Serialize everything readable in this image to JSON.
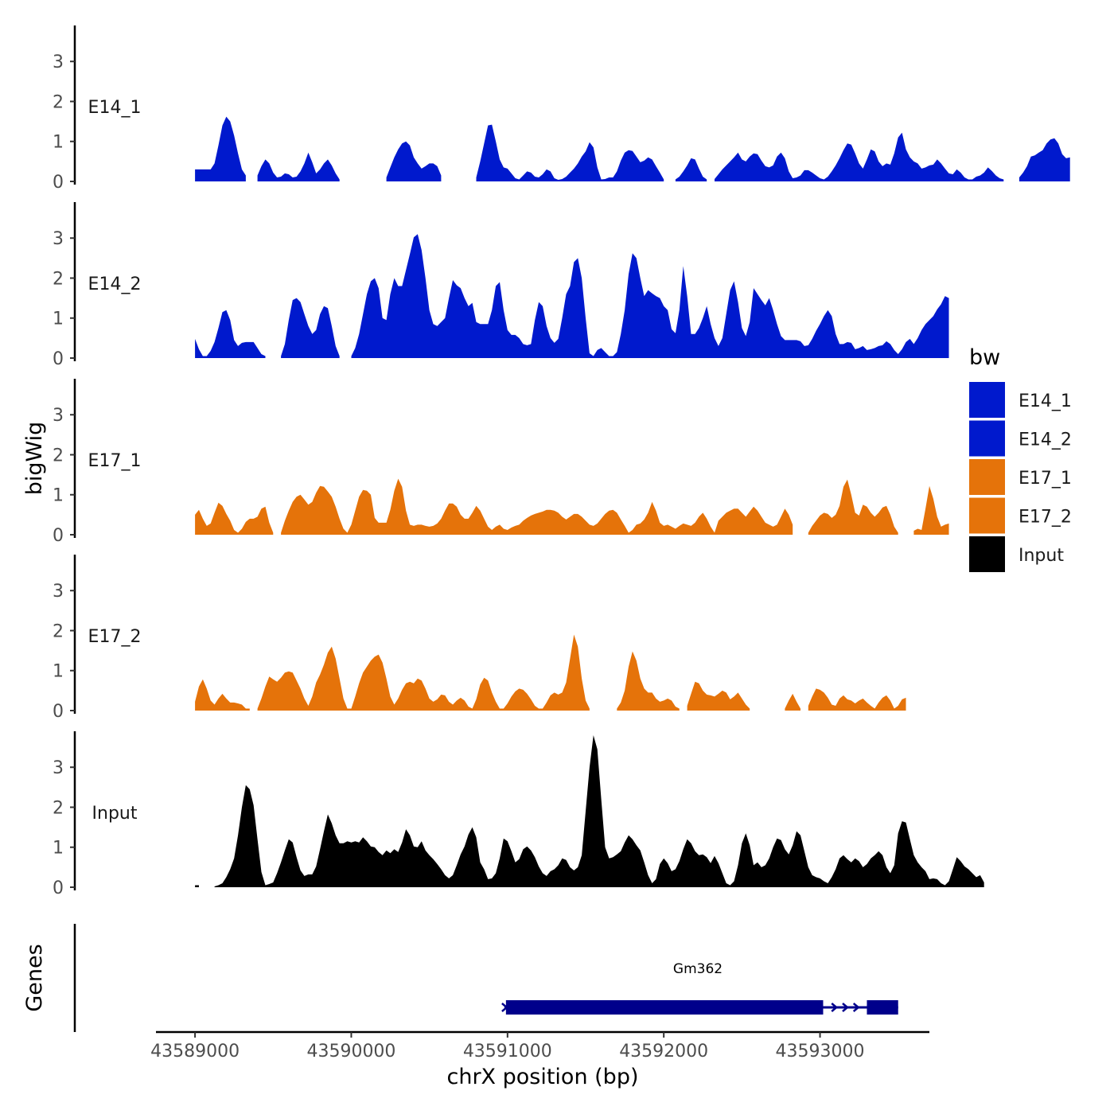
{
  "chart_data": {
    "type": "area",
    "y_title": "bigWig",
    "x_title": "chrX position (bp)",
    "genes_title": "Genes",
    "xlim": [
      43588750,
      43593700
    ],
    "data_range": [
      43589000,
      43593500
    ],
    "ylim": [
      0,
      3.9
    ],
    "y_ticks": [
      "0",
      "1",
      "2",
      "3"
    ],
    "x_ticks": [
      {
        "value": 43589000,
        "label": "43589000"
      },
      {
        "value": 43590000,
        "label": "43590000"
      },
      {
        "value": 43591000,
        "label": "43591000"
      },
      {
        "value": 43592000,
        "label": "43592000"
      },
      {
        "value": 43593000,
        "label": "43593000"
      }
    ],
    "tracks": [
      {
        "name": "E14_1",
        "color": "#0019CD",
        "step": 25,
        "values": [
          0.3,
          0.3,
          0.3,
          0.3,
          0.3,
          0.45,
          0.9,
          1.4,
          1.62,
          1.5,
          1.15,
          0.7,
          0.3,
          0.15,
          null,
          null,
          0.15,
          0.38,
          0.55,
          0.45,
          0.22,
          0.1,
          0.12,
          0.2,
          0.18,
          0.1,
          0.12,
          0.25,
          0.45,
          0.72,
          0.48,
          0.2,
          0.3,
          0.45,
          0.55,
          0.4,
          0.2,
          0.05,
          null,
          null,
          null,
          null,
          null,
          null,
          null,
          null,
          null,
          null,
          null,
          0.1,
          0.35,
          0.6,
          0.8,
          0.95,
          1.0,
          0.9,
          0.6,
          0.45,
          0.32,
          0.38,
          0.45,
          0.45,
          0.38,
          0.15,
          null,
          null,
          null,
          null,
          null,
          null,
          null,
          null,
          0.1,
          0.5,
          0.95,
          1.4,
          1.42,
          1.0,
          0.55,
          0.35,
          0.32,
          0.2,
          0.08,
          0.05,
          0.15,
          0.25,
          0.22,
          0.12,
          0.1,
          0.18,
          0.3,
          0.25,
          0.08,
          0.04,
          0.06,
          0.12,
          0.22,
          0.32,
          0.45,
          0.62,
          0.75,
          0.98,
          0.85,
          0.35,
          0.05,
          0.06,
          0.1,
          0.1,
          0.25,
          0.52,
          0.72,
          0.78,
          0.76,
          0.62,
          0.48,
          0.52,
          0.6,
          0.55,
          0.38,
          0.22,
          0.05,
          null,
          null,
          0.05,
          0.12,
          0.25,
          0.4,
          0.58,
          0.55,
          0.32,
          0.12,
          0.05,
          null,
          0.06,
          0.18,
          0.3,
          0.4,
          0.5,
          0.6,
          0.72,
          0.55,
          0.5,
          0.62,
          0.7,
          0.68,
          0.52,
          0.38,
          0.35,
          0.4,
          0.62,
          0.72,
          0.58,
          0.25,
          0.08,
          0.1,
          0.15,
          0.28,
          0.28,
          0.22,
          0.15,
          0.08,
          0.05,
          0.12,
          0.25,
          0.4,
          0.58,
          0.78,
          0.95,
          0.92,
          0.7,
          0.45,
          0.32,
          0.55,
          0.8,
          0.75,
          0.5,
          0.38,
          0.45,
          0.42,
          0.7,
          1.1,
          1.22,
          0.8,
          0.6,
          0.5,
          0.45,
          0.32,
          0.35,
          0.4,
          0.42,
          0.55,
          0.45,
          0.32,
          0.2,
          0.18,
          0.3,
          0.22,
          0.1,
          0.05,
          0.05,
          0.12,
          0.15,
          0.22,
          0.35,
          0.26,
          0.15,
          0.08,
          0.05,
          null,
          null,
          null,
          0.1,
          0.22,
          0.38,
          0.62,
          0.65,
          0.72,
          0.78,
          0.95,
          1.05,
          1.08,
          0.95,
          0.68,
          0.58,
          0.6
        ]
      },
      {
        "name": "E14_2",
        "color": "#0019CD",
        "step": 25,
        "values": [
          0.48,
          0.22,
          0.05,
          0.05,
          0.18,
          0.4,
          0.75,
          1.15,
          1.2,
          0.95,
          0.45,
          0.3,
          0.38,
          0.4,
          0.4,
          0.4,
          0.25,
          0.1,
          0.05,
          null,
          null,
          null,
          0.05,
          0.35,
          0.95,
          1.45,
          1.5,
          1.4,
          1.1,
          0.8,
          0.6,
          0.7,
          1.1,
          1.3,
          1.25,
          0.8,
          0.3,
          0.05,
          null,
          null,
          0.05,
          0.25,
          0.6,
          1.1,
          1.6,
          1.92,
          2.0,
          1.75,
          1.0,
          0.95,
          1.6,
          2.0,
          1.8,
          1.8,
          2.2,
          2.6,
          3.02,
          3.1,
          2.7,
          2.0,
          1.2,
          0.85,
          0.8,
          0.9,
          1.0,
          1.5,
          1.95,
          1.82,
          1.75,
          1.5,
          1.3,
          1.38,
          0.9,
          0.85,
          0.85,
          0.85,
          1.2,
          1.8,
          1.9,
          1.2,
          0.7,
          0.58,
          0.58,
          0.5,
          0.35,
          0.32,
          0.35,
          0.95,
          1.4,
          1.3,
          0.8,
          0.5,
          0.38,
          0.48,
          1.0,
          1.6,
          1.8,
          2.4,
          2.5,
          2.0,
          1.0,
          0.12,
          0.05,
          0.2,
          0.25,
          0.15,
          0.05,
          0.05,
          0.15,
          0.6,
          1.2,
          2.1,
          2.62,
          2.5,
          2.0,
          1.55,
          1.7,
          1.62,
          1.55,
          1.5,
          1.3,
          1.2,
          0.72,
          0.62,
          1.2,
          2.3,
          1.55,
          0.6,
          0.6,
          0.75,
          1.0,
          1.3,
          0.85,
          0.5,
          0.3,
          0.5,
          1.1,
          1.7,
          1.92,
          1.4,
          0.75,
          0.55,
          0.9,
          1.75,
          1.6,
          1.45,
          1.32,
          1.5,
          1.2,
          0.85,
          0.55,
          0.45,
          0.45,
          0.45,
          0.45,
          0.42,
          0.3,
          0.32,
          0.48,
          0.68,
          0.85,
          1.05,
          1.2,
          1.05,
          0.6,
          0.35,
          0.35,
          0.4,
          0.38,
          0.22,
          0.25,
          0.3,
          0.2,
          0.22,
          0.25,
          0.3,
          0.32,
          0.42,
          0.35,
          0.2,
          0.1,
          0.22,
          0.4,
          0.48,
          0.35,
          0.5,
          0.7,
          0.85,
          0.95,
          1.05,
          1.22,
          1.35,
          1.55,
          1.5
        ]
      },
      {
        "name": "E17_1",
        "color": "#E5730A",
        "step": 25,
        "values": [
          0.5,
          0.62,
          0.4,
          0.22,
          0.28,
          0.55,
          0.8,
          0.72,
          0.52,
          0.35,
          0.12,
          0.05,
          0.15,
          0.32,
          0.4,
          0.4,
          0.45,
          0.65,
          0.7,
          0.3,
          0.05,
          null,
          0.05,
          0.35,
          0.6,
          0.82,
          0.95,
          1.0,
          0.88,
          0.75,
          0.82,
          1.05,
          1.22,
          1.2,
          1.08,
          0.95,
          0.7,
          0.4,
          0.15,
          0.05,
          0.25,
          0.6,
          0.95,
          1.12,
          1.1,
          1.0,
          0.42,
          0.3,
          0.3,
          0.3,
          0.62,
          1.1,
          1.4,
          1.2,
          0.6,
          0.25,
          0.22,
          0.25,
          0.25,
          0.22,
          0.2,
          0.22,
          0.28,
          0.4,
          0.6,
          0.78,
          0.78,
          0.7,
          0.5,
          0.4,
          0.4,
          0.55,
          0.72,
          0.6,
          0.4,
          0.2,
          0.12,
          0.2,
          0.25,
          0.15,
          0.12,
          0.18,
          0.22,
          0.25,
          0.35,
          0.42,
          0.48,
          0.52,
          0.55,
          0.58,
          0.62,
          0.62,
          0.6,
          0.55,
          0.45,
          0.38,
          0.45,
          0.52,
          0.52,
          0.45,
          0.35,
          0.25,
          0.22,
          0.28,
          0.4,
          0.52,
          0.6,
          0.62,
          0.55,
          0.38,
          0.22,
          0.05,
          0.12,
          0.25,
          0.28,
          0.38,
          0.55,
          0.82,
          0.6,
          0.3,
          0.22,
          0.25,
          0.2,
          0.15,
          0.22,
          0.28,
          0.25,
          0.22,
          0.3,
          0.45,
          0.55,
          0.4,
          0.2,
          0.05,
          0.35,
          0.45,
          0.55,
          0.6,
          0.65,
          0.65,
          0.55,
          0.45,
          0.58,
          0.7,
          0.6,
          0.45,
          0.3,
          0.25,
          0.2,
          0.25,
          0.45,
          0.65,
          0.5,
          0.25,
          null,
          null,
          null,
          0.05,
          0.22,
          0.35,
          0.48,
          0.55,
          0.52,
          0.42,
          0.5,
          0.72,
          1.2,
          1.38,
          1.0,
          0.55,
          0.48,
          0.75,
          0.7,
          0.55,
          0.45,
          0.55,
          0.68,
          0.72,
          0.5,
          0.2,
          0.05,
          null,
          null,
          null,
          0.1,
          0.15,
          0.12,
          0.65,
          1.22,
          0.9,
          0.45,
          0.2,
          0.25,
          0.28
        ]
      },
      {
        "name": "E17_2",
        "color": "#E5730A",
        "step": 25,
        "values": [
          0.22,
          0.6,
          0.78,
          0.55,
          0.25,
          0.15,
          0.3,
          0.42,
          0.3,
          0.2,
          0.2,
          0.18,
          0.15,
          0.05,
          0.05,
          null,
          0.05,
          0.3,
          0.6,
          0.85,
          0.78,
          0.72,
          0.82,
          0.95,
          0.98,
          0.95,
          0.75,
          0.55,
          0.3,
          0.12,
          0.35,
          0.7,
          0.9,
          1.15,
          1.45,
          1.6,
          1.3,
          0.8,
          0.3,
          0.05,
          0.05,
          0.35,
          0.68,
          0.95,
          1.1,
          1.25,
          1.35,
          1.4,
          1.2,
          0.8,
          0.35,
          0.15,
          0.3,
          0.52,
          0.68,
          0.72,
          0.68,
          0.8,
          0.75,
          0.55,
          0.3,
          0.22,
          0.28,
          0.4,
          0.38,
          0.22,
          0.15,
          0.25,
          0.32,
          0.25,
          0.1,
          0.05,
          0.28,
          0.65,
          0.82,
          0.75,
          0.45,
          0.22,
          0.05,
          0.05,
          0.18,
          0.35,
          0.48,
          0.55,
          0.52,
          0.42,
          0.28,
          0.12,
          0.05,
          0.05,
          0.2,
          0.38,
          0.45,
          0.4,
          0.45,
          0.7,
          1.3,
          1.9,
          1.6,
          0.8,
          0.25,
          0.05,
          null,
          null,
          null,
          null,
          null,
          null,
          0.05,
          0.2,
          0.5,
          1.1,
          1.48,
          1.25,
          0.8,
          0.55,
          0.45,
          0.45,
          0.3,
          0.22,
          0.25,
          0.3,
          0.25,
          0.1,
          0.05,
          null,
          0.12,
          0.42,
          0.72,
          0.68,
          0.5,
          0.4,
          0.38,
          0.35,
          0.42,
          0.5,
          0.45,
          0.28,
          0.35,
          0.45,
          0.3,
          0.15,
          0.05,
          null,
          null,
          null,
          null,
          null,
          null,
          null,
          null,
          0.05,
          0.25,
          0.42,
          0.22,
          0.05,
          null,
          0.12,
          0.35,
          0.55,
          0.52,
          0.45,
          0.32,
          0.15,
          0.12,
          0.3,
          0.38,
          0.28,
          0.25,
          0.18,
          0.25,
          0.3,
          0.2,
          0.12,
          0.05,
          0.2,
          0.32,
          0.38,
          0.25,
          0.05,
          0.12,
          0.28,
          0.32
        ]
      },
      {
        "name": "Input",
        "color": "#000000",
        "step": 25,
        "values": [
          0.05,
          0.05,
          null,
          null,
          null,
          0.02,
          0.05,
          0.1,
          0.25,
          0.45,
          0.72,
          1.3,
          2.0,
          2.55,
          2.45,
          2.05,
          1.2,
          0.38,
          0.05,
          0.08,
          0.12,
          0.35,
          0.62,
          0.92,
          1.2,
          1.12,
          0.75,
          0.42,
          0.28,
          0.32,
          0.32,
          0.52,
          0.95,
          1.4,
          1.82,
          1.6,
          1.3,
          1.1,
          1.1,
          1.15,
          1.12,
          1.15,
          1.12,
          1.25,
          1.15,
          1.02,
          1.0,
          0.88,
          0.8,
          0.92,
          0.85,
          0.95,
          0.88,
          1.12,
          1.45,
          1.3,
          1.02,
          1.0,
          1.15,
          0.92,
          0.8,
          0.7,
          0.58,
          0.45,
          0.3,
          0.22,
          0.3,
          0.55,
          0.82,
          1.02,
          1.32,
          1.5,
          1.25,
          0.62,
          0.45,
          0.2,
          0.22,
          0.35,
          0.72,
          1.22,
          1.15,
          0.9,
          0.62,
          0.7,
          0.95,
          1.02,
          0.92,
          0.75,
          0.52,
          0.35,
          0.28,
          0.4,
          0.45,
          0.55,
          0.72,
          0.68,
          0.5,
          0.42,
          0.5,
          0.8,
          1.9,
          3.0,
          3.8,
          3.45,
          2.2,
          1.0,
          0.72,
          0.75,
          0.82,
          0.9,
          1.12,
          1.3,
          1.2,
          1.05,
          0.92,
          0.62,
          0.3,
          0.1,
          0.2,
          0.58,
          0.72,
          0.6,
          0.4,
          0.45,
          0.65,
          0.95,
          1.2,
          1.1,
          0.9,
          0.8,
          0.82,
          0.75,
          0.6,
          0.78,
          0.6,
          0.35,
          0.1,
          0.05,
          0.15,
          0.55,
          1.1,
          1.35,
          1.05,
          0.55,
          0.62,
          0.5,
          0.55,
          0.72,
          1.0,
          1.22,
          1.18,
          0.95,
          0.82,
          1.05,
          1.4,
          1.3,
          0.9,
          0.5,
          0.3,
          0.25,
          0.22,
          0.15,
          0.1,
          0.25,
          0.45,
          0.72,
          0.8,
          0.7,
          0.62,
          0.72,
          0.65,
          0.5,
          0.58,
          0.72,
          0.8,
          0.9,
          0.8,
          0.5,
          0.35,
          0.55,
          1.35,
          1.65,
          1.62,
          1.2,
          0.8,
          0.62,
          0.5,
          0.4,
          0.2,
          0.22,
          0.2,
          0.1,
          0.05,
          0.15,
          0.45,
          0.75,
          0.65,
          0.52,
          0.45,
          0.35,
          0.25,
          0.3,
          0.12
        ]
      }
    ],
    "legend": {
      "title": "bw",
      "position": "right",
      "items": [
        {
          "label": "E14_1",
          "color": "#0019CD"
        },
        {
          "label": "E14_2",
          "color": "#0019CD"
        },
        {
          "label": "E17_1",
          "color": "#E5730A"
        },
        {
          "label": "E17_2",
          "color": "#E5730A"
        },
        {
          "label": "Input",
          "color": "#000000"
        }
      ]
    },
    "gene": {
      "name": "Gm362",
      "color": "#00008B",
      "strand": "+",
      "start": 43590980,
      "end": 43593500,
      "exons": [
        {
          "start": 43590990,
          "end": 43593020
        },
        {
          "start": 43593300,
          "end": 43593500
        }
      ]
    }
  }
}
